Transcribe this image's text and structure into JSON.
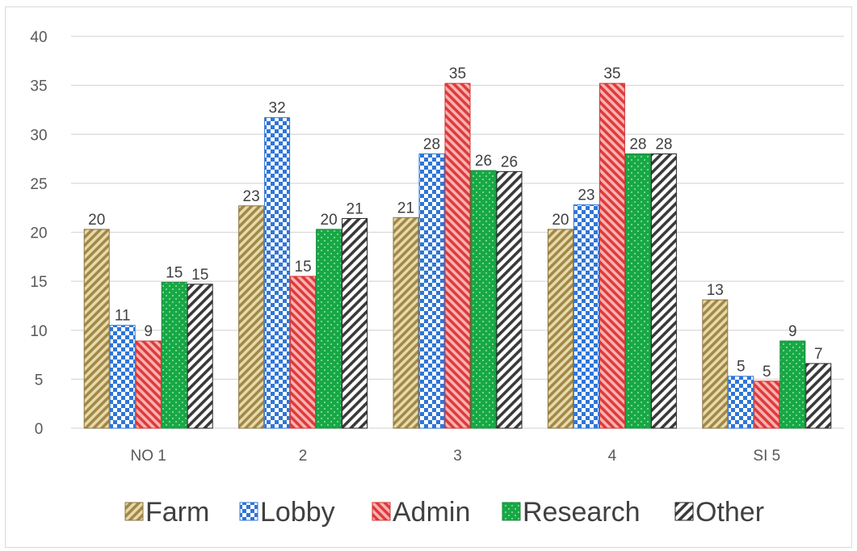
{
  "chart_data": {
    "type": "bar",
    "categories": [
      "NO 1",
      "2",
      "3",
      "4",
      "SI 5"
    ],
    "ylim": [
      0,
      40
    ],
    "yticks": [
      0,
      5,
      10,
      15,
      20,
      25,
      30,
      35,
      40
    ],
    "grid": true,
    "legend_position": "bottom",
    "series": [
      {
        "name": "Farm",
        "values": [
          20.3,
          22.7,
          21.5,
          20.3,
          13.1
        ],
        "labels": [
          "20",
          "23",
          "21",
          "20",
          "13"
        ],
        "color": "#c6ae72",
        "pattern": "diag-right"
      },
      {
        "name": "Lobby",
        "values": [
          10.5,
          31.7,
          28.0,
          22.8,
          5.3
        ],
        "labels": [
          "11",
          "32",
          "28",
          "23",
          "5"
        ],
        "color": "#2f75d6",
        "pattern": "checker"
      },
      {
        "name": "Admin",
        "values": [
          8.9,
          15.5,
          35.2,
          35.2,
          4.8
        ],
        "labels": [
          "9",
          "15",
          "35",
          "35",
          "5"
        ],
        "color": "#e84c4c",
        "pattern": "diag-up"
      },
      {
        "name": "Research",
        "values": [
          14.9,
          20.3,
          26.3,
          28.0,
          8.9
        ],
        "labels": [
          "15",
          "20",
          "26",
          "28",
          "9"
        ],
        "color": "#1aab48",
        "pattern": "dots"
      },
      {
        "name": "Other",
        "values": [
          14.7,
          21.4,
          26.2,
          28.0,
          6.6
        ],
        "labels": [
          "15",
          "21",
          "26",
          "28",
          "7"
        ],
        "color": "#404040",
        "pattern": "diag-right-bw"
      }
    ]
  }
}
